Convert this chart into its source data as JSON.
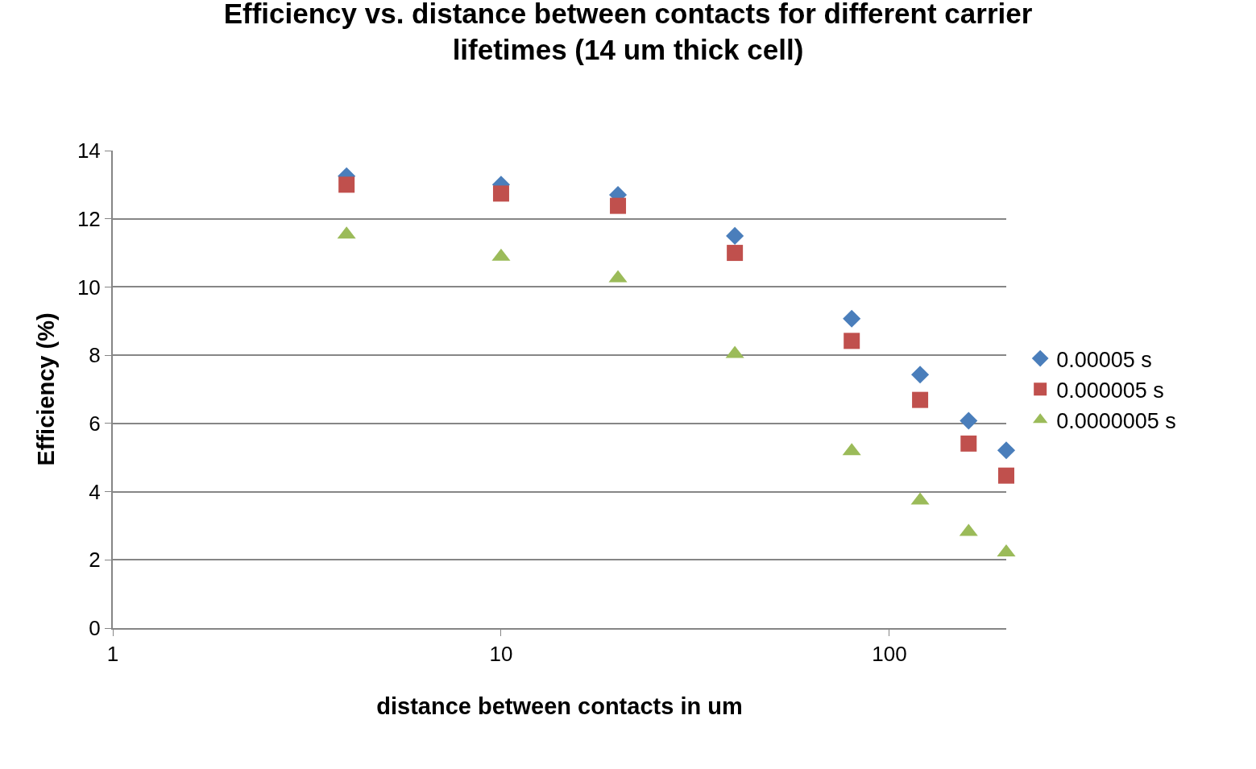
{
  "chart_data": {
    "type": "scatter",
    "title": "Efficiency vs. distance between contacts for different carrier lifetimes (14 um thick cell)",
    "xlabel": "distance between contacts in um",
    "ylabel": "Efficiency (%)",
    "x": [
      4,
      10,
      20,
      40,
      80,
      120,
      160,
      200
    ],
    "series": [
      {
        "name": "0.00005 s",
        "color": "#4a7ebb",
        "marker": "diamond",
        "values": [
          13.25,
          13.0,
          12.7,
          11.5,
          9.07,
          7.43,
          6.08,
          5.21
        ]
      },
      {
        "name": "0.000005 s",
        "color": "#c0504d",
        "marker": "square",
        "values": [
          13.0,
          12.74,
          12.38,
          11.0,
          8.42,
          6.69,
          5.41,
          4.47
        ]
      },
      {
        "name": "0.0000005 s",
        "color": "#9bbb59",
        "marker": "triangle",
        "values": [
          11.54,
          10.89,
          10.26,
          8.04,
          5.19,
          3.74,
          2.82,
          2.22
        ]
      }
    ],
    "log": "x",
    "xlim": [
      1,
      200
    ],
    "xticks": [
      1,
      10,
      100
    ],
    "ylim": [
      0,
      14
    ],
    "yticks": [
      0,
      2,
      4,
      6,
      8,
      10,
      12,
      14
    ],
    "grid": "y",
    "legend": "right"
  }
}
